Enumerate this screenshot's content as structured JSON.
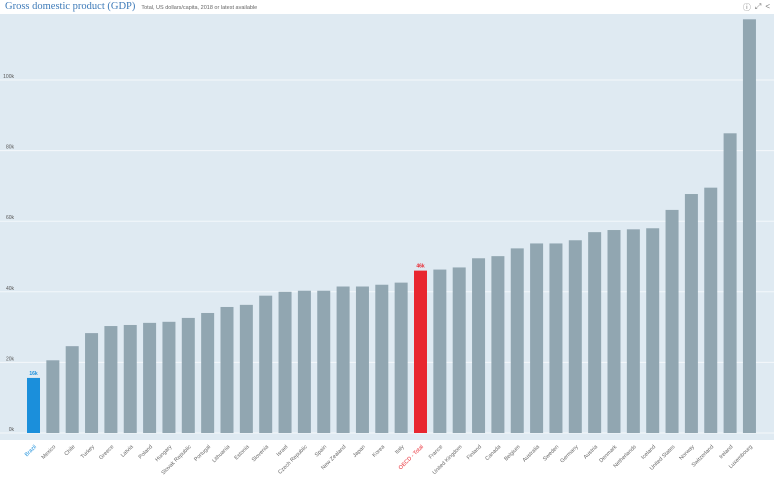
{
  "header": {
    "title": "Gross domestic product (GDP)",
    "subtitle": "Total, US dollars/capita, 2018 or latest available",
    "icons": [
      "info-icon",
      "fullscreen-icon",
      "share-icon"
    ]
  },
  "colors": {
    "background": "#dfeaf2",
    "bar": "#91a6b1",
    "highlight": "#1b8fdb",
    "oecd": "#e8262f",
    "title": "#3d7ab8"
  },
  "chart_data": {
    "type": "bar",
    "title": "Gross domestic product (GDP)",
    "subtitle": "Total, US dollars/capita, 2018 or latest available",
    "ylim": [
      0,
      120
    ],
    "yticks": [
      0,
      20,
      40,
      60,
      80,
      100
    ],
    "ytick_labels": [
      "0k",
      "20k",
      "40k",
      "60k",
      "80k",
      "100k"
    ],
    "grid": true,
    "categories": [
      "Brazil",
      "Mexico",
      "Chile",
      "Turkey",
      "Greece",
      "Latvia",
      "Poland",
      "Hungary",
      "Slovak Republic",
      "Portugal",
      "Lithuania",
      "Estonia",
      "Slovenia",
      "Israel",
      "Czech Republic",
      "Spain",
      "New Zealand",
      "Japan",
      "Korea",
      "Italy",
      "OECD - Total",
      "France",
      "United Kingdom",
      "Finland",
      "Canada",
      "Belgium",
      "Australia",
      "Sweden",
      "Germany",
      "Austria",
      "Denmark",
      "Netherlands",
      "Iceland",
      "United States",
      "Norway",
      "Switzerland",
      "Ireland",
      "Luxembourg"
    ],
    "values": [
      15.6,
      20.6,
      24.6,
      28.3,
      30.3,
      30.6,
      31.2,
      31.5,
      32.6,
      34.0,
      35.7,
      36.3,
      38.9,
      40.0,
      40.3,
      40.3,
      41.5,
      41.5,
      42.0,
      42.6,
      46.0,
      46.3,
      46.9,
      49.5,
      50.1,
      52.3,
      53.7,
      53.7,
      54.6,
      56.9,
      57.5,
      57.7,
      58.0,
      63.2,
      67.7,
      69.5,
      84.9,
      117.2
    ],
    "data_labels": [
      {
        "category": "Brazil",
        "text": "16k"
      },
      {
        "category": "OECD - Total",
        "text": "46k"
      }
    ],
    "highlight": {
      "Brazil": "#1b8fdb",
      "OECD - Total": "#e8262f"
    }
  }
}
